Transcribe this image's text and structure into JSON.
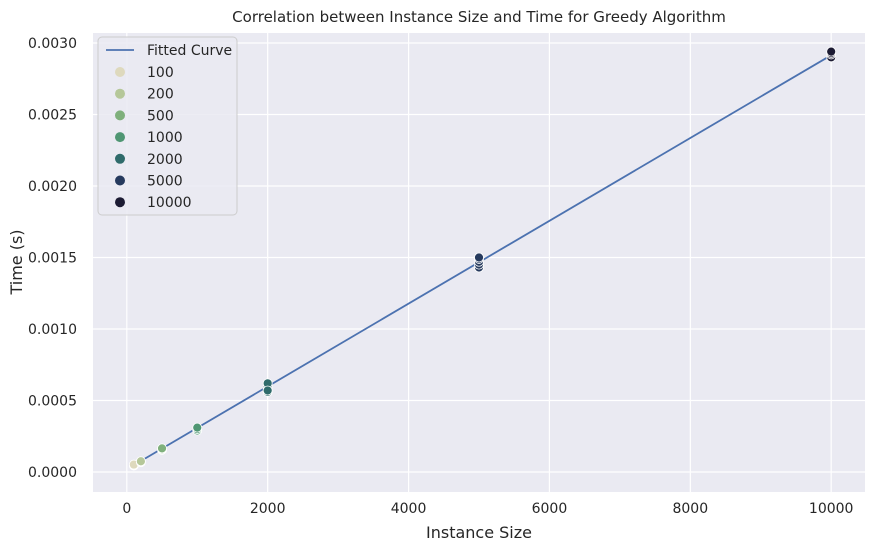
{
  "chart_data": {
    "type": "scatter",
    "title": "Correlation between Instance Size and Time for Greedy Algorithm",
    "xlabel": "Instance Size",
    "ylabel": "Time (s)",
    "xlim": [
      -480,
      10480
    ],
    "ylim": [
      -0.00014,
      0.00307
    ],
    "xticks": [
      0,
      2000,
      4000,
      6000,
      8000,
      10000
    ],
    "xtick_labels": [
      "0",
      "2000",
      "4000",
      "6000",
      "8000",
      "10000"
    ],
    "yticks": [
      0,
      0.0005,
      0.001,
      0.0015,
      0.002,
      0.0025,
      0.003
    ],
    "ytick_labels": [
      "0.0000",
      "0.0005",
      "0.0010",
      "0.0015",
      "0.0020",
      "0.0025",
      "0.0030"
    ],
    "grid": true,
    "legend_position": "top-left",
    "fitted_curve": {
      "name": "Fitted Curve",
      "color": "#4c72b0",
      "x": [
        100,
        10000
      ],
      "y": [
        4.8e-05,
        0.002915
      ]
    },
    "series": [
      {
        "name": "100",
        "color": "#ded9bd",
        "x": [
          100,
          100,
          100
        ],
        "y": [
          4.5e-05,
          4.8e-05,
          5.2e-05
        ]
      },
      {
        "name": "200",
        "color": "#b5c799",
        "x": [
          200,
          200,
          200
        ],
        "y": [
          6.8e-05,
          7.2e-05,
          7.5e-05
        ]
      },
      {
        "name": "500",
        "color": "#7fb07c",
        "x": [
          500,
          500,
          500
        ],
        "y": [
          0.000155,
          0.00016,
          0.000165
        ]
      },
      {
        "name": "1000",
        "color": "#4f9673",
        "x": [
          1000,
          1000,
          1000
        ],
        "y": [
          0.00029,
          0.0003,
          0.00031
        ]
      },
      {
        "name": "2000",
        "color": "#2f6b6b",
        "x": [
          2000,
          2000,
          2000,
          2000,
          2000
        ],
        "y": [
          0.00056,
          0.00058,
          0.0006,
          0.00062,
          0.00057
        ]
      },
      {
        "name": "5000",
        "color": "#263a5e",
        "x": [
          5000,
          5000,
          5000,
          5000,
          5000
        ],
        "y": [
          0.00143,
          0.00145,
          0.00147,
          0.00149,
          0.0015
        ]
      },
      {
        "name": "10000",
        "color": "#1c1b33",
        "x": [
          10000,
          10000,
          10000,
          10000
        ],
        "y": [
          0.0029,
          0.00292,
          0.00293,
          0.00294
        ]
      }
    ]
  }
}
